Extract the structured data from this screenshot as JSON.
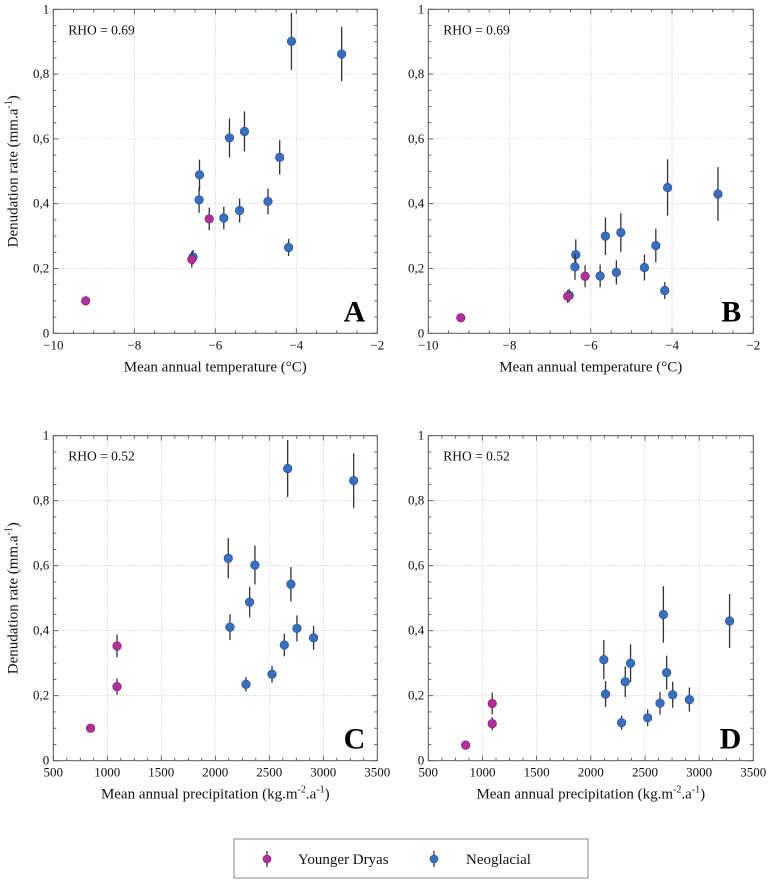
{
  "legend": {
    "items": [
      {
        "label": "Younger Dryas",
        "color": "#b0309a"
      },
      {
        "label": "Neoglacial",
        "color": "#3a6fbf"
      }
    ]
  },
  "chart_data": [
    {
      "type": "scatter",
      "panel": "A",
      "annotation": "RHO = 0.69",
      "xlabel": "Mean annual temperature (°C)",
      "ylabel": "Denudation rate (mm.a-1)",
      "xlim": [
        -10,
        -2
      ],
      "ylim": [
        0,
        1
      ],
      "xticks": [
        -10,
        -8,
        -6,
        -4,
        -2
      ],
      "xtick_labels": [
        "−10",
        "−8",
        "−6",
        "−4",
        "−2"
      ],
      "yticks": [
        0,
        0.2,
        0.4,
        0.6,
        0.8,
        1
      ],
      "ytick_labels": [
        "0",
        "0,2",
        "0,4",
        "0,6",
        "0,8",
        "1"
      ],
      "grid": true,
      "series": [
        {
          "name": "Younger Dryas",
          "color": "#b0309a",
          "points": [
            {
              "x": -9.2,
              "y": 0.1,
              "err": 0
            },
            {
              "x": -6.58,
              "y": 0.228,
              "err": 0.025
            },
            {
              "x": -6.15,
              "y": 0.353,
              "err": 0.035
            }
          ]
        },
        {
          "name": "Neoglacial",
          "color": "#3a6fbf",
          "points": [
            {
              "x": -6.55,
              "y": 0.235,
              "err": 0.022
            },
            {
              "x": -6.39,
              "y": 0.489,
              "err": 0.047
            },
            {
              "x": -6.4,
              "y": 0.412,
              "err": 0.04
            },
            {
              "x": -5.79,
              "y": 0.356,
              "err": 0.035
            },
            {
              "x": -5.65,
              "y": 0.603,
              "err": 0.06
            },
            {
              "x": -5.4,
              "y": 0.379,
              "err": 0.037
            },
            {
              "x": -5.28,
              "y": 0.623,
              "err": 0.062
            },
            {
              "x": -4.7,
              "y": 0.407,
              "err": 0.04
            },
            {
              "x": -4.41,
              "y": 0.543,
              "err": 0.053
            },
            {
              "x": -4.19,
              "y": 0.265,
              "err": 0.026
            },
            {
              "x": -4.12,
              "y": 0.901,
              "err": 0.088
            },
            {
              "x": -2.88,
              "y": 0.862,
              "err": 0.084
            }
          ]
        }
      ]
    },
    {
      "type": "scatter",
      "panel": "B",
      "annotation": "RHO = 0.69",
      "xlabel": "Mean annual temperature (°C)",
      "ylabel": "",
      "xlim": [
        -10,
        -2
      ],
      "ylim": [
        0,
        1
      ],
      "xticks": [
        -10,
        -8,
        -6,
        -4,
        -2
      ],
      "xtick_labels": [
        "−10",
        "−8",
        "−6",
        "−4",
        "−2"
      ],
      "yticks": [
        0,
        0.2,
        0.4,
        0.6,
        0.8,
        1
      ],
      "ytick_labels": [
        "0",
        "0,2",
        "0,4",
        "0,6",
        "0,8",
        "1"
      ],
      "grid": true,
      "series": [
        {
          "name": "Younger Dryas",
          "color": "#b0309a",
          "points": [
            {
              "x": -9.2,
              "y": 0.048,
              "err": 0
            },
            {
              "x": -6.57,
              "y": 0.114,
              "err": 0.02
            },
            {
              "x": -6.14,
              "y": 0.176,
              "err": 0.034
            }
          ]
        },
        {
          "name": "Neoglacial",
          "color": "#3a6fbf",
          "points": [
            {
              "x": -6.53,
              "y": 0.117,
              "err": 0.02
            },
            {
              "x": -6.37,
              "y": 0.243,
              "err": 0.047
            },
            {
              "x": -6.39,
              "y": 0.205,
              "err": 0.04
            },
            {
              "x": -5.77,
              "y": 0.177,
              "err": 0.035
            },
            {
              "x": -5.64,
              "y": 0.3,
              "err": 0.058
            },
            {
              "x": -5.37,
              "y": 0.188,
              "err": 0.037
            },
            {
              "x": -5.26,
              "y": 0.311,
              "err": 0.06
            },
            {
              "x": -4.68,
              "y": 0.203,
              "err": 0.04
            },
            {
              "x": -4.4,
              "y": 0.271,
              "err": 0.052
            },
            {
              "x": -4.18,
              "y": 0.132,
              "err": 0.026
            },
            {
              "x": -4.11,
              "y": 0.45,
              "err": 0.087
            },
            {
              "x": -2.87,
              "y": 0.43,
              "err": 0.083
            }
          ]
        }
      ]
    },
    {
      "type": "scatter",
      "panel": "C",
      "annotation": "RHO = 0.52",
      "xlabel": "Mean annual precipitation (kg.m-2.a-1)",
      "ylabel": "Denudation rate (mm.a-1)",
      "xlim": [
        500,
        3500
      ],
      "ylim": [
        0,
        1
      ],
      "xticks": [
        500,
        1000,
        1500,
        2000,
        2500,
        3000,
        3500
      ],
      "xtick_labels": [
        "500",
        "1000",
        "1500",
        "2000",
        "2500",
        "3000",
        "3500"
      ],
      "yticks": [
        0,
        0.2,
        0.4,
        0.6,
        0.8,
        1
      ],
      "ytick_labels": [
        "0",
        "0,2",
        "0,4",
        "0,6",
        "0,8",
        "1"
      ],
      "grid": true,
      "series": [
        {
          "name": "Younger Dryas",
          "color": "#b0309a",
          "points": [
            {
              "x": 845,
              "y": 0.1,
              "err": 0
            },
            {
              "x": 1090,
              "y": 0.228,
              "err": 0.025
            },
            {
              "x": 1090,
              "y": 0.353,
              "err": 0.035
            }
          ]
        },
        {
          "name": "Neoglacial",
          "color": "#3a6fbf",
          "points": [
            {
              "x": 2120,
              "y": 0.623,
              "err": 0.062
            },
            {
              "x": 2136,
              "y": 0.411,
              "err": 0.04
            },
            {
              "x": 2284,
              "y": 0.235,
              "err": 0.022
            },
            {
              "x": 2318,
              "y": 0.488,
              "err": 0.047
            },
            {
              "x": 2367,
              "y": 0.602,
              "err": 0.06
            },
            {
              "x": 2525,
              "y": 0.266,
              "err": 0.026
            },
            {
              "x": 2639,
              "y": 0.356,
              "err": 0.035
            },
            {
              "x": 2670,
              "y": 0.899,
              "err": 0.088
            },
            {
              "x": 2700,
              "y": 0.543,
              "err": 0.053
            },
            {
              "x": 2756,
              "y": 0.407,
              "err": 0.04
            },
            {
              "x": 2910,
              "y": 0.378,
              "err": 0.037
            },
            {
              "x": 3281,
              "y": 0.862,
              "err": 0.084
            }
          ]
        }
      ]
    },
    {
      "type": "scatter",
      "panel": "D",
      "annotation": "RHO = 0.52",
      "xlabel": "Mean annual precipitation (kg.m-2.a-1)",
      "ylabel": "",
      "xlim": [
        500,
        3500
      ],
      "ylim": [
        0,
        1
      ],
      "xticks": [
        500,
        1000,
        1500,
        2000,
        2500,
        3000,
        3500
      ],
      "xtick_labels": [
        "500",
        "1000",
        "1500",
        "2000",
        "2500",
        "3000",
        "3500"
      ],
      "yticks": [
        0,
        0.2,
        0.4,
        0.6,
        0.8,
        1
      ],
      "ytick_labels": [
        "0",
        "0,2",
        "0,4",
        "0,6",
        "0,8",
        "1"
      ],
      "grid": true,
      "series": [
        {
          "name": "Younger Dryas",
          "color": "#b0309a",
          "points": [
            {
              "x": 845,
              "y": 0.048,
              "err": 0
            },
            {
              "x": 1090,
              "y": 0.114,
              "err": 0.02
            },
            {
              "x": 1090,
              "y": 0.176,
              "err": 0.034
            }
          ]
        },
        {
          "name": "Neoglacial",
          "color": "#3a6fbf",
          "points": [
            {
              "x": 2120,
              "y": 0.311,
              "err": 0.06
            },
            {
              "x": 2136,
              "y": 0.205,
              "err": 0.04
            },
            {
              "x": 2284,
              "y": 0.117,
              "err": 0.022
            },
            {
              "x": 2318,
              "y": 0.243,
              "err": 0.047
            },
            {
              "x": 2367,
              "y": 0.3,
              "err": 0.058
            },
            {
              "x": 2525,
              "y": 0.132,
              "err": 0.026
            },
            {
              "x": 2639,
              "y": 0.177,
              "err": 0.035
            },
            {
              "x": 2670,
              "y": 0.45,
              "err": 0.087
            },
            {
              "x": 2700,
              "y": 0.271,
              "err": 0.052
            },
            {
              "x": 2756,
              "y": 0.203,
              "err": 0.04
            },
            {
              "x": 2910,
              "y": 0.188,
              "err": 0.037
            },
            {
              "x": 3281,
              "y": 0.43,
              "err": 0.083
            }
          ]
        }
      ]
    }
  ]
}
